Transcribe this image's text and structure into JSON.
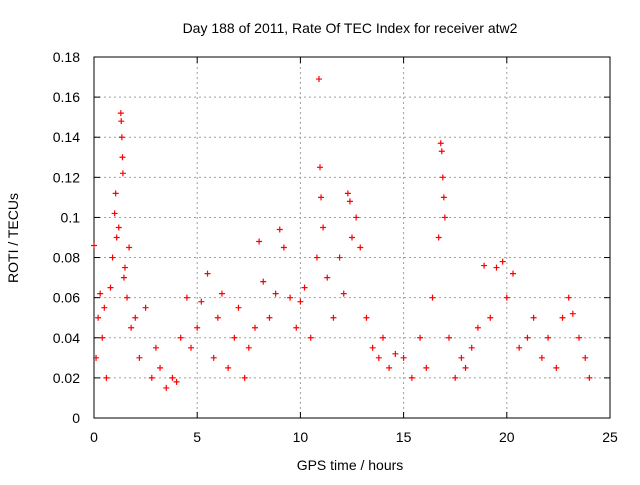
{
  "chart_data": {
    "type": "scatter",
    "title": "Day 188 of 2011, Rate Of TEC Index for receiver atw2",
    "xlabel": "GPS time / hours",
    "ylabel": "ROTI / TECUs",
    "xlim": [
      0,
      25
    ],
    "ylim": [
      0,
      0.18
    ],
    "xticks": [
      0,
      5,
      10,
      15,
      20,
      25
    ],
    "yticks": [
      0,
      0.02,
      0.04,
      0.06,
      0.08,
      0.1,
      0.12,
      0.14,
      0.16,
      0.18
    ],
    "xtick_labels": [
      "0",
      "5",
      "10",
      "15",
      "20",
      "25"
    ],
    "ytick_labels": [
      "0",
      "0.02",
      "0.04",
      "0.06",
      "0.08",
      "0.1",
      "0.12",
      "0.14",
      "0.16",
      "0.18"
    ],
    "grid": true,
    "marker": "+",
    "color": "#ff0000",
    "data_extent_hours": [
      0,
      24
    ],
    "points": [
      [
        0.0,
        0.086
      ],
      [
        0.1,
        0.03
      ],
      [
        0.2,
        0.05
      ],
      [
        0.3,
        0.062
      ],
      [
        0.4,
        0.04
      ],
      [
        0.5,
        0.055
      ],
      [
        0.6,
        0.02
      ],
      [
        0.8,
        0.065
      ],
      [
        0.9,
        0.08
      ],
      [
        1.0,
        0.102
      ],
      [
        1.05,
        0.112
      ],
      [
        1.1,
        0.09
      ],
      [
        1.2,
        0.095
      ],
      [
        1.3,
        0.152
      ],
      [
        1.32,
        0.148
      ],
      [
        1.35,
        0.14
      ],
      [
        1.38,
        0.13
      ],
      [
        1.4,
        0.122
      ],
      [
        1.45,
        0.07
      ],
      [
        1.5,
        0.075
      ],
      [
        1.6,
        0.06
      ],
      [
        1.7,
        0.085
      ],
      [
        1.8,
        0.045
      ],
      [
        2.0,
        0.05
      ],
      [
        2.2,
        0.03
      ],
      [
        2.5,
        0.055
      ],
      [
        2.8,
        0.02
      ],
      [
        3.0,
        0.035
      ],
      [
        3.2,
        0.025
      ],
      [
        3.5,
        0.015
      ],
      [
        3.8,
        0.02
      ],
      [
        4.0,
        0.018
      ],
      [
        4.2,
        0.04
      ],
      [
        4.5,
        0.06
      ],
      [
        4.7,
        0.035
      ],
      [
        5.0,
        0.045
      ],
      [
        5.2,
        0.058
      ],
      [
        5.5,
        0.072
      ],
      [
        5.8,
        0.03
      ],
      [
        6.0,
        0.05
      ],
      [
        6.2,
        0.062
      ],
      [
        6.5,
        0.025
      ],
      [
        6.8,
        0.04
      ],
      [
        7.0,
        0.055
      ],
      [
        7.3,
        0.02
      ],
      [
        7.5,
        0.035
      ],
      [
        7.8,
        0.045
      ],
      [
        8.0,
        0.088
      ],
      [
        8.2,
        0.068
      ],
      [
        8.5,
        0.05
      ],
      [
        8.8,
        0.062
      ],
      [
        9.0,
        0.094
      ],
      [
        9.2,
        0.085
      ],
      [
        9.5,
        0.06
      ],
      [
        9.8,
        0.045
      ],
      [
        10.0,
        0.058
      ],
      [
        10.2,
        0.065
      ],
      [
        10.5,
        0.04
      ],
      [
        10.8,
        0.08
      ],
      [
        10.9,
        0.169
      ],
      [
        10.95,
        0.125
      ],
      [
        11.0,
        0.11
      ],
      [
        11.1,
        0.095
      ],
      [
        11.3,
        0.07
      ],
      [
        11.6,
        0.05
      ],
      [
        11.9,
        0.08
      ],
      [
        12.1,
        0.062
      ],
      [
        12.3,
        0.112
      ],
      [
        12.4,
        0.108
      ],
      [
        12.5,
        0.09
      ],
      [
        12.7,
        0.1
      ],
      [
        12.9,
        0.085
      ],
      [
        13.2,
        0.05
      ],
      [
        13.5,
        0.035
      ],
      [
        13.8,
        0.03
      ],
      [
        14.0,
        0.04
      ],
      [
        14.3,
        0.025
      ],
      [
        14.6,
        0.032
      ],
      [
        15.0,
        0.03
      ],
      [
        15.4,
        0.02
      ],
      [
        15.8,
        0.04
      ],
      [
        16.1,
        0.025
      ],
      [
        16.4,
        0.06
      ],
      [
        16.7,
        0.09
      ],
      [
        16.8,
        0.137
      ],
      [
        16.85,
        0.133
      ],
      [
        16.9,
        0.12
      ],
      [
        16.95,
        0.11
      ],
      [
        17.0,
        0.1
      ],
      [
        17.2,
        0.04
      ],
      [
        17.5,
        0.02
      ],
      [
        17.8,
        0.03
      ],
      [
        18.0,
        0.025
      ],
      [
        18.3,
        0.035
      ],
      [
        18.6,
        0.045
      ],
      [
        18.9,
        0.076
      ],
      [
        19.2,
        0.05
      ],
      [
        19.5,
        0.075
      ],
      [
        19.8,
        0.078
      ],
      [
        20.0,
        0.06
      ],
      [
        20.3,
        0.072
      ],
      [
        20.6,
        0.035
      ],
      [
        21.0,
        0.04
      ],
      [
        21.3,
        0.05
      ],
      [
        21.7,
        0.03
      ],
      [
        22.0,
        0.04
      ],
      [
        22.4,
        0.025
      ],
      [
        22.7,
        0.05
      ],
      [
        23.0,
        0.06
      ],
      [
        23.2,
        0.052
      ],
      [
        23.5,
        0.04
      ],
      [
        23.8,
        0.03
      ],
      [
        24.0,
        0.02
      ]
    ]
  }
}
